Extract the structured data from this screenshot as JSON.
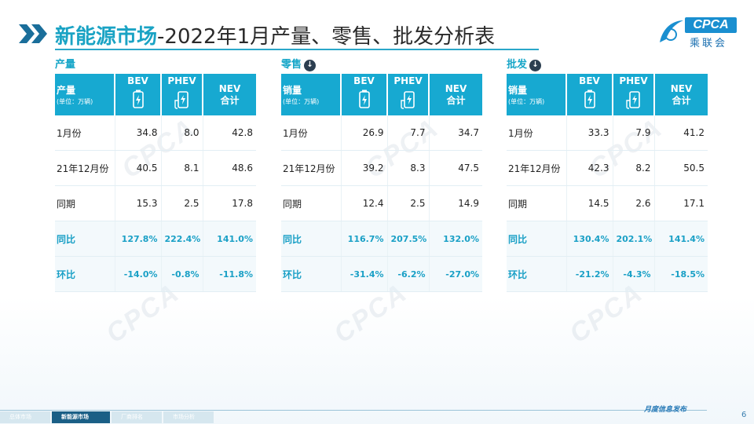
{
  "title": {
    "accent": "新能源市场",
    "rest": "-2022年1月产量、零售、批发分析表"
  },
  "logo": {
    "text": "CPCA",
    "cn": "乘联会",
    "small": "CPCA"
  },
  "watermark": "CPCA",
  "header_units": "(单位：万辆)",
  "columns": {
    "bev": "BEV",
    "phev": "PHEV",
    "nev_line1": "NEV",
    "nev_line2": "合计"
  },
  "sections": [
    {
      "title": "产量",
      "has_icon": false,
      "row_header": "产量",
      "rows": [
        {
          "label": "1月份",
          "bev": "34.8",
          "phev": "8.0",
          "nev": "42.8"
        },
        {
          "label": "21年12月份",
          "bev": "40.5",
          "phev": "8.1",
          "nev": "48.6"
        },
        {
          "label": "同期",
          "bev": "15.3",
          "phev": "2.5",
          "nev": "17.8"
        },
        {
          "label": "同比",
          "bev": "127.8%",
          "phev": "222.4%",
          "nev": "141.0%"
        },
        {
          "label": "环比",
          "bev": "-14.0%",
          "phev": "-0.8%",
          "nev": "-11.8%"
        }
      ]
    },
    {
      "title": "零售",
      "has_icon": true,
      "row_header": "销量",
      "rows": [
        {
          "label": "1月份",
          "bev": "26.9",
          "phev": "7.7",
          "nev": "34.7"
        },
        {
          "label": "21年12月份",
          "bev": "39.2",
          "phev": "8.3",
          "nev": "47.5"
        },
        {
          "label": "同期",
          "bev": "12.4",
          "phev": "2.5",
          "nev": "14.9"
        },
        {
          "label": "同比",
          "bev": "116.7%",
          "phev": "207.5%",
          "nev": "132.0%"
        },
        {
          "label": "环比",
          "bev": "-31.4%",
          "phev": "-6.2%",
          "nev": "-27.0%"
        }
      ]
    },
    {
      "title": "批发",
      "has_icon": true,
      "row_header": "销量",
      "rows": [
        {
          "label": "1月份",
          "bev": "33.3",
          "phev": "7.9",
          "nev": "41.2"
        },
        {
          "label": "21年12月份",
          "bev": "42.3",
          "phev": "8.2",
          "nev": "50.5"
        },
        {
          "label": "同期",
          "bev": "14.5",
          "phev": "2.6",
          "nev": "17.1"
        },
        {
          "label": "同比",
          "bev": "130.4%",
          "phev": "202.1%",
          "nev": "141.4%"
        },
        {
          "label": "环比",
          "bev": "-21.2%",
          "phev": "-4.3%",
          "nev": "-18.5%"
        }
      ]
    }
  ],
  "footer": {
    "tabs": [
      {
        "label": "总体市场",
        "active": false
      },
      {
        "label": "新能源市场",
        "active": true
      },
      {
        "label": "厂商排名",
        "active": false
      },
      {
        "label": "市场分析",
        "active": false
      }
    ],
    "note": "月度信息发布",
    "page": "6"
  },
  "colors": {
    "accent": "#17a9d1",
    "title_accent": "#1aa3c4",
    "footer_active": "#1a5f86"
  },
  "icons": {
    "bev": "battery-icon",
    "phev": "charging-pump-icon",
    "section_arrow": "arrow-down-circle-icon",
    "title": "double-chevron-icon"
  }
}
